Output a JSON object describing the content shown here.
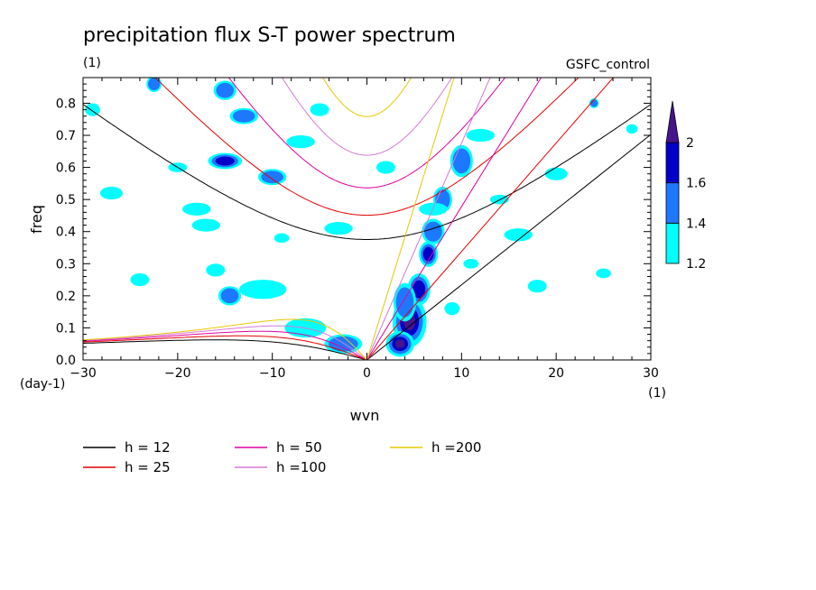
{
  "chart_data": {
    "type": "heatmap",
    "title": "precipitation flux S-T power spectrum",
    "subtitle_left": "(1)",
    "subtitle_right": "GSFC_control",
    "xlabel": "wvn",
    "ylabel": "freq",
    "x_unit_label": "(1)",
    "y_unit_label": "(day-1)",
    "xlim": [
      -30,
      30
    ],
    "ylim": [
      0,
      0.88
    ],
    "x_ticks": [
      "-30",
      "-20",
      "-10",
      "0",
      "10",
      "20",
      "30"
    ],
    "y_ticks": [
      "0.0",
      "0.1",
      "0.2",
      "0.3",
      "0.4",
      "0.5",
      "0.6",
      "0.7",
      "0.8"
    ],
    "colorbar": {
      "levels": [
        "1.2",
        "1.4",
        "1.6",
        "2"
      ],
      "colors": [
        "#00ffff",
        "#1e78ff",
        "#0000c8",
        "#46148c"
      ]
    },
    "dispersion_curves": [
      {
        "name": "h = 12",
        "h": 12,
        "color": "#000000"
      },
      {
        "name": "h = 25",
        "h": 25,
        "color": "#e60000"
      },
      {
        "name": "h = 50",
        "h": 50,
        "color": "#e000a0"
      },
      {
        "name": "h =100",
        "h": 100,
        "color": "#d678d6"
      },
      {
        "name": "h =200",
        "h": 200,
        "color": "#e6c800"
      }
    ],
    "contour_blobs": [
      {
        "x": 4.5,
        "y": 0.12,
        "rx": 1.8,
        "ry": 0.08,
        "level": 4
      },
      {
        "x": 3.5,
        "y": 0.05,
        "rx": 1.5,
        "ry": 0.04,
        "level": 4
      },
      {
        "x": 5.5,
        "y": 0.22,
        "rx": 1.2,
        "ry": 0.05,
        "level": 3
      },
      {
        "x": 6.5,
        "y": 0.33,
        "rx": 1.0,
        "ry": 0.04,
        "level": 3
      },
      {
        "x": 7.0,
        "y": 0.4,
        "rx": 1.2,
        "ry": 0.04,
        "level": 2
      },
      {
        "x": 8.0,
        "y": 0.5,
        "rx": 1.0,
        "ry": 0.04,
        "level": 2
      },
      {
        "x": 10.0,
        "y": 0.62,
        "rx": 1.2,
        "ry": 0.05,
        "level": 2
      },
      {
        "x": 4.0,
        "y": 0.18,
        "rx": 1.2,
        "ry": 0.06,
        "level": 2
      },
      {
        "x": -2.5,
        "y": 0.05,
        "rx": 2.0,
        "ry": 0.03,
        "level": 2
      },
      {
        "x": -6.5,
        "y": 0.1,
        "rx": 2.2,
        "ry": 0.03,
        "level": 1
      },
      {
        "x": -11,
        "y": 0.22,
        "rx": 2.5,
        "ry": 0.03,
        "level": 1
      },
      {
        "x": -14.5,
        "y": 0.2,
        "rx": 1.2,
        "ry": 0.03,
        "level": 2
      },
      {
        "x": -15,
        "y": 0.62,
        "rx": 1.8,
        "ry": 0.025,
        "level": 3
      },
      {
        "x": -10,
        "y": 0.57,
        "rx": 1.5,
        "ry": 0.025,
        "level": 2
      },
      {
        "x": -13,
        "y": 0.76,
        "rx": 1.5,
        "ry": 0.025,
        "level": 2
      },
      {
        "x": -15,
        "y": 0.84,
        "rx": 1.2,
        "ry": 0.03,
        "level": 2
      },
      {
        "x": -22.5,
        "y": 0.86,
        "rx": 0.8,
        "ry": 0.025,
        "level": 2
      },
      {
        "x": -18,
        "y": 0.47,
        "rx": 1.5,
        "ry": 0.02,
        "level": 1
      },
      {
        "x": -17,
        "y": 0.42,
        "rx": 1.5,
        "ry": 0.02,
        "level": 1
      },
      {
        "x": -7,
        "y": 0.68,
        "rx": 1.5,
        "ry": 0.02,
        "level": 1
      },
      {
        "x": -3,
        "y": 0.41,
        "rx": 1.5,
        "ry": 0.02,
        "level": 1
      },
      {
        "x": 7,
        "y": 0.47,
        "rx": 1.5,
        "ry": 0.02,
        "level": 1
      },
      {
        "x": 12,
        "y": 0.7,
        "rx": 1.5,
        "ry": 0.02,
        "level": 1
      },
      {
        "x": 16,
        "y": 0.39,
        "rx": 1.5,
        "ry": 0.02,
        "level": 1
      },
      {
        "x": 20,
        "y": 0.58,
        "rx": 1.2,
        "ry": 0.02,
        "level": 1
      },
      {
        "x": 24,
        "y": 0.8,
        "rx": 0.5,
        "ry": 0.015,
        "level": 2
      },
      {
        "x": -27,
        "y": 0.52,
        "rx": 1.2,
        "ry": 0.02,
        "level": 1
      },
      {
        "x": -24,
        "y": 0.25,
        "rx": 1.0,
        "ry": 0.02,
        "level": 1
      },
      {
        "x": -16,
        "y": 0.28,
        "rx": 1.0,
        "ry": 0.02,
        "level": 1
      },
      {
        "x": -5,
        "y": 0.78,
        "rx": 1.0,
        "ry": 0.02,
        "level": 1
      },
      {
        "x": 2,
        "y": 0.6,
        "rx": 1.0,
        "ry": 0.02,
        "level": 1
      },
      {
        "x": 18,
        "y": 0.23,
        "rx": 1.0,
        "ry": 0.02,
        "level": 1
      },
      {
        "x": 9,
        "y": 0.16,
        "rx": 0.8,
        "ry": 0.02,
        "level": 1
      },
      {
        "x": -29,
        "y": 0.78,
        "rx": 0.8,
        "ry": 0.02,
        "level": 1
      },
      {
        "x": 28,
        "y": 0.72,
        "rx": 0.6,
        "ry": 0.015,
        "level": 1
      },
      {
        "x": -20,
        "y": 0.6,
        "rx": 1.0,
        "ry": 0.015,
        "level": 1
      },
      {
        "x": 14,
        "y": 0.5,
        "rx": 1.0,
        "ry": 0.015,
        "level": 1
      },
      {
        "x": 25,
        "y": 0.27,
        "rx": 0.8,
        "ry": 0.015,
        "level": 1
      },
      {
        "x": -9,
        "y": 0.38,
        "rx": 0.8,
        "ry": 0.015,
        "level": 1
      },
      {
        "x": 11,
        "y": 0.3,
        "rx": 0.8,
        "ry": 0.015,
        "level": 1
      }
    ]
  }
}
